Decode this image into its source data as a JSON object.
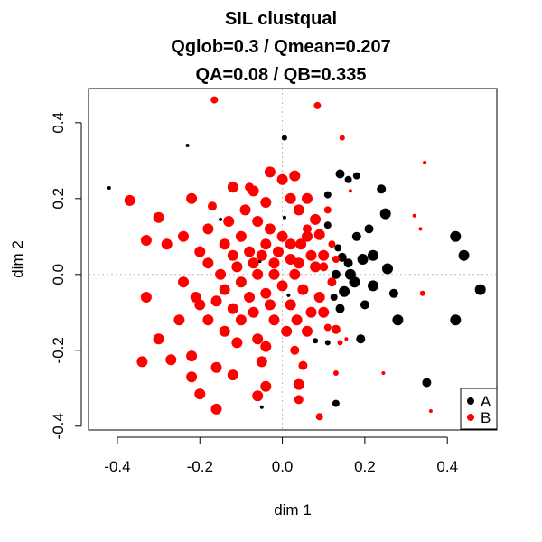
{
  "chart_data": {
    "type": "scatter",
    "title_lines": [
      "SIL clustqual",
      "Qglob=0.3 / Qmean=0.207",
      "QA=0.08 / QB=0.335"
    ],
    "xlabel": "dim 1",
    "ylabel": "dim 2",
    "xlim": [
      -0.47,
      0.52
    ],
    "ylim": [
      -0.41,
      0.49
    ],
    "xticks": [
      -0.4,
      -0.2,
      0.0,
      0.2,
      0.4
    ],
    "yticks": [
      -0.4,
      -0.2,
      0.0,
      0.2,
      0.4
    ],
    "xtick_labels": [
      "-0.4",
      "-0.2",
      "0.0",
      "0.2",
      "0.4"
    ],
    "ytick_labels": [
      "-0.4",
      "-0.2",
      "0.0",
      "0.2",
      "0.4"
    ],
    "grid": false,
    "reference_lines": {
      "x": 0,
      "y": 0,
      "style": "dotted",
      "color": "#bbbbbb"
    },
    "legend": {
      "position": "bottom-right",
      "entries": [
        {
          "label": "A",
          "color": "#000000"
        },
        {
          "label": "B",
          "color": "#ff0000"
        }
      ]
    },
    "series": [
      {
        "name": "A",
        "color": "#000000",
        "points": [
          {
            "x": 0.48,
            "y": -0.04,
            "s": 6
          },
          {
            "x": 0.44,
            "y": 0.05,
            "s": 6
          },
          {
            "x": 0.42,
            "y": 0.1,
            "s": 6
          },
          {
            "x": 0.42,
            "y": -0.12,
            "s": 6
          },
          {
            "x": 0.35,
            "y": -0.285,
            "s": 5
          },
          {
            "x": 0.28,
            "y": -0.12,
            "s": 6
          },
          {
            "x": 0.27,
            "y": -0.05,
            "s": 5
          },
          {
            "x": 0.25,
            "y": 0.16,
            "s": 6
          },
          {
            "x": 0.24,
            "y": 0.225,
            "s": 5
          },
          {
            "x": 0.255,
            "y": 0.015,
            "s": 6
          },
          {
            "x": 0.22,
            "y": 0.05,
            "s": 6
          },
          {
            "x": 0.22,
            "y": -0.03,
            "s": 6
          },
          {
            "x": 0.2,
            "y": -0.08,
            "s": 5
          },
          {
            "x": 0.21,
            "y": 0.12,
            "s": 5
          },
          {
            "x": 0.195,
            "y": 0.04,
            "s": 6
          },
          {
            "x": 0.19,
            "y": -0.17,
            "s": 5
          },
          {
            "x": 0.18,
            "y": 0.1,
            "s": 5
          },
          {
            "x": 0.175,
            "y": -0.02,
            "s": 6
          },
          {
            "x": 0.165,
            "y": 0.0,
            "s": 6
          },
          {
            "x": 0.16,
            "y": 0.03,
            "s": 5
          },
          {
            "x": 0.15,
            "y": -0.045,
            "s": 6
          },
          {
            "x": 0.145,
            "y": 0.045,
            "s": 5
          },
          {
            "x": 0.14,
            "y": -0.09,
            "s": 5
          },
          {
            "x": 0.135,
            "y": 0.07,
            "s": 4
          },
          {
            "x": 0.13,
            "y": 0.0,
            "s": 5
          },
          {
            "x": 0.125,
            "y": -0.06,
            "s": 4
          },
          {
            "x": 0.14,
            "y": 0.265,
            "s": 5
          },
          {
            "x": 0.16,
            "y": 0.25,
            "s": 4
          },
          {
            "x": 0.18,
            "y": 0.26,
            "s": 4
          },
          {
            "x": 0.11,
            "y": 0.21,
            "s": 4
          },
          {
            "x": 0.11,
            "y": 0.13,
            "s": 4
          },
          {
            "x": 0.13,
            "y": -0.34,
            "s": 4
          },
          {
            "x": 0.08,
            "y": -0.175,
            "s": 3
          },
          {
            "x": 0.11,
            "y": -0.18,
            "s": 3
          },
          {
            "x": 0.005,
            "y": 0.36,
            "s": 3
          },
          {
            "x": -0.23,
            "y": 0.34,
            "s": 2
          },
          {
            "x": -0.42,
            "y": 0.228,
            "s": 2
          },
          {
            "x": -0.15,
            "y": 0.145,
            "s": 2
          },
          {
            "x": -0.05,
            "y": -0.35,
            "s": 2
          },
          {
            "x": 0.005,
            "y": 0.15,
            "s": 2
          },
          {
            "x": 0.015,
            "y": -0.055,
            "s": 2
          },
          {
            "x": -0.055,
            "y": 0.035,
            "s": 2
          }
        ]
      },
      {
        "name": "B",
        "color": "#ff0000",
        "points": [
          {
            "x": -0.165,
            "y": 0.46,
            "s": 4
          },
          {
            "x": 0.085,
            "y": 0.445,
            "s": 4
          },
          {
            "x": 0.145,
            "y": 0.36,
            "s": 3
          },
          {
            "x": 0.345,
            "y": 0.295,
            "s": 2
          },
          {
            "x": 0.32,
            "y": 0.155,
            "s": 2
          },
          {
            "x": 0.335,
            "y": 0.12,
            "s": 2
          },
          {
            "x": 0.34,
            "y": -0.05,
            "s": 3
          },
          {
            "x": 0.245,
            "y": -0.26,
            "s": 2
          },
          {
            "x": 0.36,
            "y": -0.36,
            "s": 2
          },
          {
            "x": 0.09,
            "y": -0.375,
            "s": 4
          },
          {
            "x": 0.13,
            "y": -0.26,
            "s": 3
          },
          {
            "x": 0.14,
            "y": -0.18,
            "s": 3
          },
          {
            "x": 0.155,
            "y": -0.17,
            "s": 2
          },
          {
            "x": 0.165,
            "y": 0.22,
            "s": 2
          },
          {
            "x": -0.37,
            "y": 0.195,
            "s": 6
          },
          {
            "x": -0.3,
            "y": 0.15,
            "s": 6
          },
          {
            "x": -0.33,
            "y": 0.09,
            "s": 6
          },
          {
            "x": -0.28,
            "y": 0.08,
            "s": 6
          },
          {
            "x": -0.33,
            "y": -0.06,
            "s": 6
          },
          {
            "x": -0.3,
            "y": -0.17,
            "s": 6
          },
          {
            "x": -0.34,
            "y": -0.23,
            "s": 6
          },
          {
            "x": -0.27,
            "y": -0.225,
            "s": 6
          },
          {
            "x": -0.22,
            "y": -0.215,
            "s": 6
          },
          {
            "x": -0.22,
            "y": -0.27,
            "s": 6
          },
          {
            "x": -0.16,
            "y": -0.245,
            "s": 6
          },
          {
            "x": -0.12,
            "y": -0.265,
            "s": 6
          },
          {
            "x": -0.16,
            "y": -0.355,
            "s": 6
          },
          {
            "x": -0.2,
            "y": -0.315,
            "s": 6
          },
          {
            "x": -0.06,
            "y": -0.32,
            "s": 6
          },
          {
            "x": -0.04,
            "y": -0.295,
            "s": 6
          },
          {
            "x": 0.04,
            "y": -0.29,
            "s": 6
          },
          {
            "x": 0.04,
            "y": -0.33,
            "s": 5
          },
          {
            "x": 0.13,
            "y": -0.145,
            "s": 5
          },
          {
            "x": -0.04,
            "y": -0.19,
            "s": 6
          },
          {
            "x": 0.03,
            "y": -0.2,
            "s": 5
          },
          {
            "x": 0.05,
            "y": -0.24,
            "s": 5
          },
          {
            "x": -0.22,
            "y": 0.2,
            "s": 6
          },
          {
            "x": -0.12,
            "y": 0.23,
            "s": 6
          },
          {
            "x": -0.07,
            "y": 0.22,
            "s": 6
          },
          {
            "x": -0.03,
            "y": 0.27,
            "s": 6
          },
          {
            "x": 0.0,
            "y": 0.25,
            "s": 6
          },
          {
            "x": 0.03,
            "y": 0.26,
            "s": 6
          },
          {
            "x": -0.04,
            "y": 0.19,
            "s": 6
          },
          {
            "x": -0.18,
            "y": 0.12,
            "s": 6
          },
          {
            "x": 0.08,
            "y": 0.145,
            "s": 6
          },
          {
            "x": 0.06,
            "y": 0.2,
            "s": 6
          },
          {
            "x": 0.09,
            "y": 0.105,
            "s": 6
          },
          {
            "x": 0.06,
            "y": 0.1,
            "s": 6
          },
          {
            "x": -0.18,
            "y": 0.03,
            "s": 6
          },
          {
            "x": -0.2,
            "y": -0.08,
            "s": 6
          },
          {
            "x": -0.18,
            "y": -0.12,
            "s": 6
          },
          {
            "x": -0.14,
            "y": -0.15,
            "s": 6
          },
          {
            "x": -0.1,
            "y": -0.12,
            "s": 6
          },
          {
            "x": -0.06,
            "y": -0.17,
            "s": 6
          },
          {
            "x": -0.02,
            "y": -0.12,
            "s": 6
          },
          {
            "x": 0.02,
            "y": -0.08,
            "s": 6
          },
          {
            "x": 0.05,
            "y": -0.04,
            "s": 6
          },
          {
            "x": 0.08,
            "y": 0.02,
            "s": 6
          },
          {
            "x": 0.07,
            "y": 0.05,
            "s": 6
          },
          {
            "x": 0.1,
            "y": -0.1,
            "s": 6
          },
          {
            "x": -0.12,
            "y": 0.05,
            "s": 6
          },
          {
            "x": -0.08,
            "y": 0.06,
            "s": 6
          },
          {
            "x": -0.04,
            "y": 0.08,
            "s": 6
          },
          {
            "x": 0.0,
            "y": 0.1,
            "s": 6
          },
          {
            "x": 0.02,
            "y": 0.04,
            "s": 6
          },
          {
            "x": -0.02,
            "y": 0.03,
            "s": 6
          },
          {
            "x": -0.06,
            "y": 0.0,
            "s": 6
          },
          {
            "x": -0.1,
            "y": -0.02,
            "s": 6
          },
          {
            "x": -0.14,
            "y": -0.04,
            "s": 6
          },
          {
            "x": -0.08,
            "y": -0.06,
            "s": 6
          },
          {
            "x": -0.04,
            "y": -0.05,
            "s": 6
          },
          {
            "x": 0.0,
            "y": -0.03,
            "s": 6
          },
          {
            "x": 0.03,
            "y": 0.0,
            "s": 6
          },
          {
            "x": -0.03,
            "y": 0.12,
            "s": 6
          },
          {
            "x": -0.1,
            "y": 0.1,
            "s": 6
          },
          {
            "x": -0.14,
            "y": 0.08,
            "s": 6
          },
          {
            "x": -0.2,
            "y": 0.06,
            "s": 6
          },
          {
            "x": -0.24,
            "y": -0.02,
            "s": 6
          },
          {
            "x": -0.25,
            "y": -0.12,
            "s": 6
          },
          {
            "x": 0.06,
            "y": -0.15,
            "s": 6
          },
          {
            "x": 0.09,
            "y": -0.06,
            "s": 6
          },
          {
            "x": 0.1,
            "y": 0.05,
            "s": 6
          },
          {
            "x": -0.06,
            "y": 0.14,
            "s": 6
          },
          {
            "x": -0.17,
            "y": 0.18,
            "s": 5
          },
          {
            "x": -0.09,
            "y": 0.17,
            "s": 6
          },
          {
            "x": 0.04,
            "y": 0.17,
            "s": 6
          },
          {
            "x": 0.11,
            "y": 0.17,
            "s": 4
          },
          {
            "x": -0.12,
            "y": -0.09,
            "s": 6
          },
          {
            "x": -0.16,
            "y": -0.07,
            "s": 6
          },
          {
            "x": -0.07,
            "y": -0.1,
            "s": 6
          },
          {
            "x": -0.03,
            "y": -0.08,
            "s": 6
          },
          {
            "x": 0.01,
            "y": -0.15,
            "s": 6
          },
          {
            "x": 0.035,
            "y": -0.12,
            "s": 6
          },
          {
            "x": -0.05,
            "y": 0.05,
            "s": 6
          },
          {
            "x": -0.01,
            "y": 0.06,
            "s": 6
          },
          {
            "x": 0.045,
            "y": 0.08,
            "s": 6
          },
          {
            "x": 0.1,
            "y": 0.02,
            "s": 5
          },
          {
            "x": 0.12,
            "y": 0.08,
            "s": 4
          },
          {
            "x": 0.11,
            "y": -0.14,
            "s": 4
          },
          {
            "x": -0.11,
            "y": 0.02,
            "s": 6
          },
          {
            "x": -0.07,
            "y": 0.03,
            "s": 6
          },
          {
            "x": -0.02,
            "y": 0.0,
            "s": 6
          },
          {
            "x": 0.02,
            "y": 0.08,
            "s": 6
          },
          {
            "x": -0.13,
            "y": 0.14,
            "s": 6
          },
          {
            "x": -0.11,
            "y": -0.18,
            "s": 6
          },
          {
            "x": -0.21,
            "y": -0.06,
            "s": 6
          },
          {
            "x": -0.15,
            "y": 0.0,
            "s": 6
          },
          {
            "x": 0.06,
            "y": 0.12,
            "s": 5
          },
          {
            "x": 0.07,
            "y": -0.1,
            "s": 6
          },
          {
            "x": 0.04,
            "y": 0.03,
            "s": 6
          },
          {
            "x": 0.12,
            "y": -0.02,
            "s": 5
          },
          {
            "x": 0.13,
            "y": 0.04,
            "s": 4
          },
          {
            "x": -0.24,
            "y": 0.1,
            "s": 6
          },
          {
            "x": -0.05,
            "y": -0.23,
            "s": 6
          },
          {
            "x": -0.08,
            "y": 0.23,
            "s": 5
          },
          {
            "x": 0.02,
            "y": 0.2,
            "s": 6
          }
        ]
      }
    ]
  }
}
